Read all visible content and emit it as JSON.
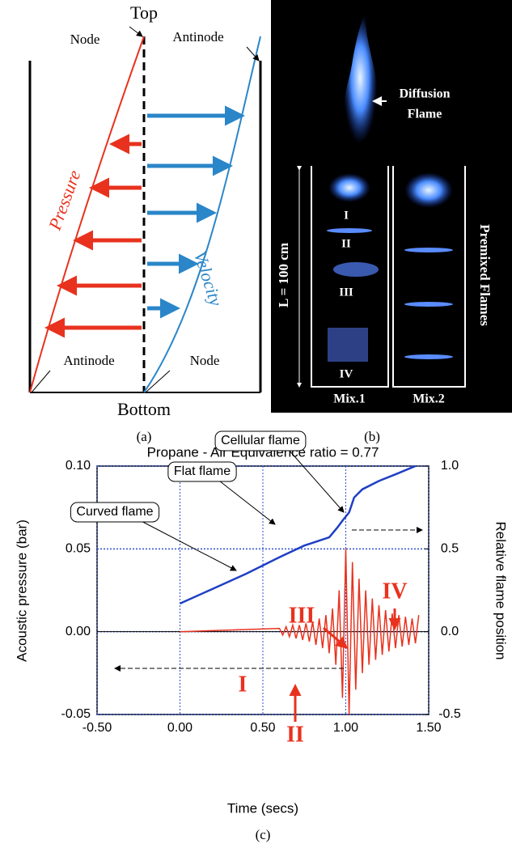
{
  "panel_a": {
    "top": "Top",
    "node_top": "Node",
    "antinode_top": "Antinode",
    "pressure": "Pressure",
    "velocity": "Velocity",
    "antinode_bottom": "Antinode",
    "node_bottom": "Node",
    "bottom": "Bottom",
    "caption": "(a)"
  },
  "panel_b": {
    "diffusion_1": "Diffusion",
    "diffusion_2": "Flame",
    "length": "L = 100 cm",
    "stages": [
      "I",
      "II",
      "III",
      "IV"
    ],
    "mix1": "Mix.1",
    "mix2": "Mix.2",
    "premixed": "Premixed  Flames",
    "caption": "(b)"
  },
  "panel_c_caption": "(c)",
  "chart_data": {
    "type": "line",
    "title": "Propane - Air Equivalence ratio = 0.77",
    "x_label": "Time (secs)",
    "y_label": "Acoustic pressure (bar)",
    "y2_label": "Relative flame position",
    "xlim": [
      -0.5,
      1.5
    ],
    "xticks": [
      {
        "value": -0.5,
        "label": "-0.50"
      },
      {
        "value": 0,
        "label": "0.00"
      },
      {
        "value": 0.5,
        "label": "0.50"
      },
      {
        "value": 1,
        "label": "1.00"
      },
      {
        "value": 1.5,
        "label": "1.50"
      }
    ],
    "ylim": [
      -0.05,
      0.1
    ],
    "yticks": [
      {
        "value": -0.05,
        "label": "-0.05"
      },
      {
        "value": 0,
        "label": "0.00"
      },
      {
        "value": 0.05,
        "label": "0.05"
      },
      {
        "value": 0.1,
        "label": "0.10"
      }
    ],
    "y2lim": [
      -0.5,
      1.0
    ],
    "y2ticks": [
      {
        "value": -0.5,
        "label": "-0.5"
      },
      {
        "value": 0,
        "label": "0.0"
      },
      {
        "value": 0.5,
        "label": "0.5"
      },
      {
        "value": 1,
        "label": "1.0"
      }
    ],
    "grid": true,
    "series": [
      {
        "color": "#e8321e",
        "x": [
          0,
          0.6,
          0.62,
          0.64,
          0.66,
          0.68,
          0.7,
          0.72,
          0.74,
          0.76,
          0.78,
          0.8,
          0.82,
          0.84,
          0.86,
          0.88,
          0.9,
          0.92,
          0.94,
          0.96,
          0.98,
          1.0,
          1.02,
          1.04,
          1.06,
          1.08,
          1.1,
          1.12,
          1.14,
          1.16,
          1.18,
          1.2,
          1.22,
          1.24,
          1.26,
          1.28,
          1.3,
          1.32,
          1.34,
          1.36,
          1.38,
          1.4,
          1.42,
          1.44
        ],
        "values": [
          0,
          0.002,
          -0.002,
          0.003,
          -0.003,
          0.004,
          -0.004,
          0.004,
          -0.005,
          0.005,
          -0.006,
          0.006,
          -0.008,
          0.008,
          -0.01,
          0.01,
          -0.013,
          0.014,
          -0.02,
          0.025,
          -0.04,
          0.05,
          -0.05,
          0.042,
          -0.035,
          0.032,
          -0.025,
          0.025,
          -0.02,
          0.02,
          -0.017,
          0.016,
          -0.014,
          0.013,
          -0.012,
          0.011,
          -0.01,
          0.01,
          -0.009,
          0.009,
          -0.008,
          0.008,
          -0.007,
          0.01
        ]
      },
      {
        "color": "#1f3fc4",
        "axis": "y2",
        "x": [
          0,
          0.2,
          0.4,
          0.6,
          0.75,
          0.9,
          0.95,
          0.98,
          1.02,
          1.05,
          1.1,
          1.2,
          1.3,
          1.42
        ],
        "values": [
          0.17,
          0.26,
          0.35,
          0.45,
          0.52,
          0.57,
          0.63,
          0.67,
          0.72,
          0.81,
          0.86,
          0.91,
          0.95,
          1.0
        ]
      }
    ],
    "annotations": [
      "Cellular flame",
      "Flat flame",
      "Curved flame",
      "I",
      "II",
      "III",
      "IV"
    ]
  }
}
